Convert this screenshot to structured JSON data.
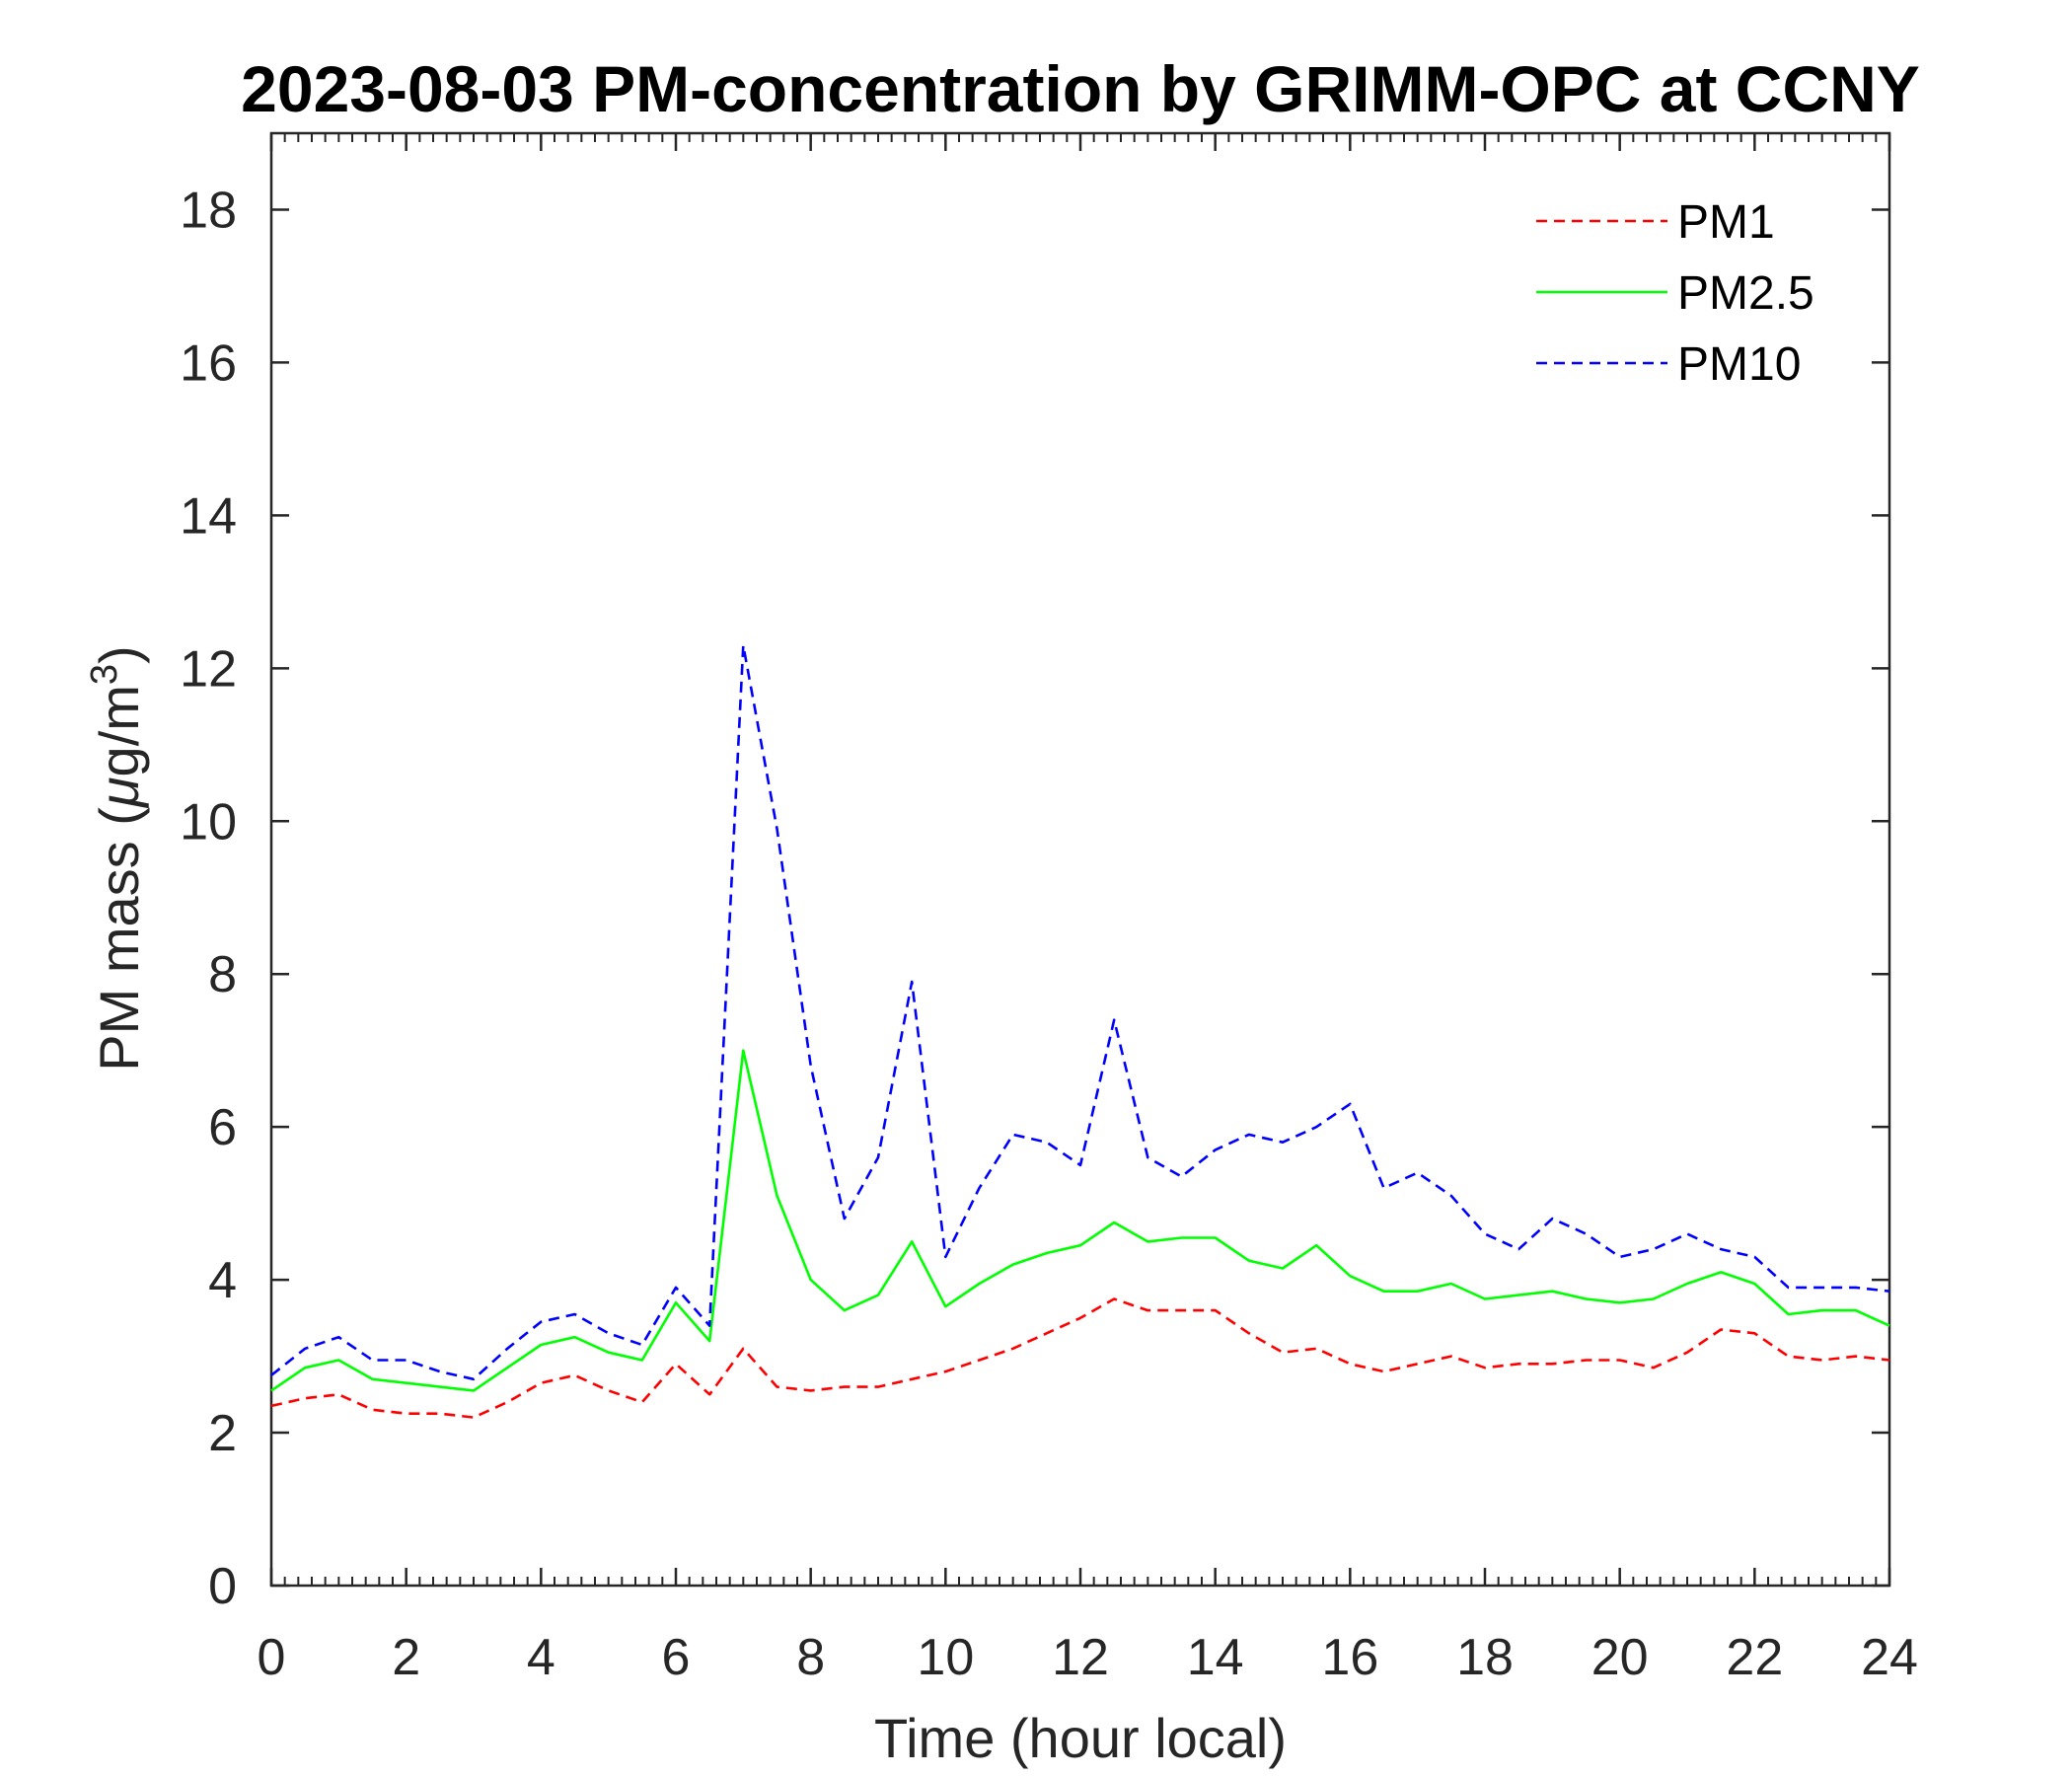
{
  "chart_data": {
    "type": "line",
    "title": "2023-08-03 PM-concentration by GRIMM-OPC at CCNY",
    "xlabel": "Time (hour local)",
    "ylabel": "PM mass (μg/m³)",
    "ylabel_parts": {
      "prefix": "PM mass (",
      "mu": "μ",
      "mid": "g/m",
      "sup": "3",
      "suffix": ")"
    },
    "xlim": [
      0,
      24
    ],
    "ylim": [
      0,
      19
    ],
    "x_ticks": [
      0,
      2,
      4,
      6,
      8,
      10,
      12,
      14,
      16,
      18,
      20,
      22,
      24
    ],
    "x_tick_labels": [
      "0",
      "2",
      "4",
      "6",
      "8",
      "10",
      "12",
      "14",
      "16",
      "18",
      "20",
      "22",
      "24"
    ],
    "y_ticks": [
      0,
      2,
      4,
      6,
      8,
      10,
      12,
      14,
      16,
      18
    ],
    "y_tick_labels": [
      "0",
      "2",
      "4",
      "6",
      "8",
      "10",
      "12",
      "14",
      "16",
      "18"
    ],
    "grid": false,
    "legend_position": "top-right",
    "x": [
      0,
      0.5,
      1,
      1.5,
      2,
      2.5,
      3,
      3.5,
      4,
      4.5,
      5,
      5.5,
      6,
      6.5,
      7,
      7.5,
      8,
      8.5,
      9,
      9.5,
      10,
      10.5,
      11,
      11.5,
      12,
      12.5,
      13,
      13.5,
      14,
      14.5,
      15,
      15.5,
      16,
      16.5,
      17,
      17.5,
      18,
      18.5,
      19,
      19.5,
      20,
      20.5,
      21,
      21.5,
      22,
      22.5,
      23,
      23.5,
      24
    ],
    "series": [
      {
        "name": "PM1",
        "color": "#ff0000",
        "dash": "dashed",
        "values": [
          2.35,
          2.45,
          2.5,
          2.3,
          2.25,
          2.25,
          2.2,
          2.4,
          2.65,
          2.75,
          2.55,
          2.4,
          2.9,
          2.5,
          3.1,
          2.6,
          2.55,
          2.6,
          2.6,
          2.7,
          2.8,
          2.95,
          3.1,
          3.3,
          3.5,
          3.75,
          3.6,
          3.6,
          3.6,
          3.3,
          3.05,
          3.1,
          2.9,
          2.8,
          2.9,
          3.0,
          2.85,
          2.9,
          2.9,
          2.95,
          2.95,
          2.85,
          3.05,
          3.35,
          3.3,
          3.0,
          2.95,
          3.0,
          2.95
        ]
      },
      {
        "name": "PM2.5",
        "color": "#00ff00",
        "dash": "solid",
        "values": [
          2.55,
          2.85,
          2.95,
          2.7,
          2.65,
          2.6,
          2.55,
          2.85,
          3.15,
          3.25,
          3.05,
          2.95,
          3.7,
          3.2,
          7.0,
          5.1,
          4.0,
          3.6,
          3.8,
          4.5,
          3.65,
          3.95,
          4.2,
          4.35,
          4.45,
          4.75,
          4.5,
          4.55,
          4.55,
          4.25,
          4.15,
          4.45,
          4.05,
          3.85,
          3.85,
          3.95,
          3.75,
          3.8,
          3.85,
          3.75,
          3.7,
          3.75,
          3.95,
          4.1,
          3.95,
          3.55,
          3.6,
          3.6,
          3.4
        ]
      },
      {
        "name": "PM10",
        "color": "#0000ff",
        "dash": "dashed",
        "values": [
          2.75,
          3.1,
          3.25,
          2.95,
          2.95,
          2.8,
          2.7,
          3.1,
          3.45,
          3.55,
          3.3,
          3.15,
          3.9,
          3.4,
          12.3,
          9.9,
          6.8,
          4.8,
          5.6,
          7.9,
          4.3,
          5.2,
          5.9,
          5.8,
          5.5,
          7.4,
          5.6,
          5.35,
          5.7,
          5.9,
          5.8,
          6.0,
          6.3,
          5.2,
          5.4,
          5.1,
          4.6,
          4.4,
          4.8,
          4.6,
          4.3,
          4.4,
          4.6,
          4.4,
          4.3,
          3.9,
          3.9,
          3.9,
          3.85
        ]
      }
    ]
  }
}
